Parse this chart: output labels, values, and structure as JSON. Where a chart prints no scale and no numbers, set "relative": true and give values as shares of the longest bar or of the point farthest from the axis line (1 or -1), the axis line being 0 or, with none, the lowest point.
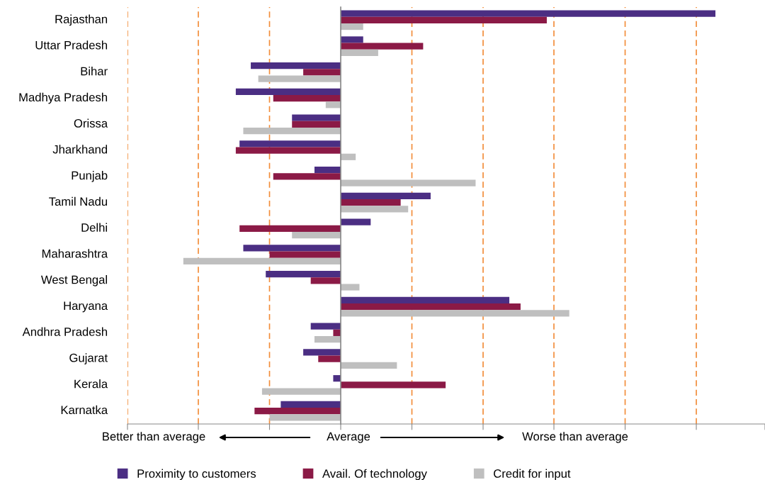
{
  "chart_data": {
    "type": "bar",
    "orientation": "horizontal",
    "relative": true,
    "categories": [
      "Rajasthan",
      "Uttar Pradesh",
      "Bihar",
      "Madhya Pradesh",
      "Orissa",
      "Jharkhand",
      "Punjab",
      "Tamil Nadu",
      "Delhi",
      "Maharashtra",
      "West Bengal",
      "Haryana",
      "Andhra Pradesh",
      "Gujarat",
      "Kerala",
      "Karnatka"
    ],
    "series": [
      {
        "name": "Proximity to customers",
        "color": "#4b2e83",
        "values": [
          1.0,
          0.06,
          -0.24,
          -0.28,
          -0.13,
          -0.27,
          -0.07,
          0.24,
          0.08,
          -0.26,
          -0.2,
          0.45,
          -0.08,
          -0.1,
          -0.02,
          -0.16
        ]
      },
      {
        "name": "Avail. Of technology",
        "color": "#8b1a46",
        "values": [
          0.55,
          0.22,
          -0.1,
          -0.18,
          -0.13,
          -0.28,
          -0.18,
          0.16,
          -0.27,
          -0.19,
          -0.08,
          0.48,
          -0.02,
          -0.06,
          0.28,
          -0.23
        ]
      },
      {
        "name": "Credit for input",
        "color": "#bfbfbf",
        "values": [
          0.06,
          0.1,
          -0.22,
          -0.04,
          -0.26,
          0.04,
          0.36,
          0.18,
          -0.13,
          -0.42,
          0.05,
          0.61,
          -0.07,
          0.15,
          -0.21,
          -0.19
        ]
      }
    ],
    "annotations": [
      "Better than average",
      "Average",
      "Worse than average"
    ],
    "ref_lines": [
      {
        "axis": "x",
        "value": -0.569,
        "color": "#f28c38",
        "line_style": "dashed"
      },
      {
        "axis": "x",
        "value": -0.38,
        "color": "#f28c38",
        "line_style": "dashed"
      },
      {
        "axis": "x",
        "value": -0.19,
        "color": "#f28c38",
        "line_style": "dashed"
      },
      {
        "axis": "x",
        "value": 0.19,
        "color": "#f28c38",
        "line_style": "dashed"
      },
      {
        "axis": "x",
        "value": 0.38,
        "color": "#f28c38",
        "line_style": "dashed"
      },
      {
        "axis": "x",
        "value": 0.569,
        "color": "#f28c38",
        "line_style": "dashed"
      },
      {
        "axis": "x",
        "value": 0.759,
        "color": "#f28c38",
        "line_style": "dashed"
      },
      {
        "axis": "x",
        "value": 0.949,
        "color": "#f28c38",
        "line_style": "dashed"
      }
    ],
    "legend": "bottom"
  }
}
